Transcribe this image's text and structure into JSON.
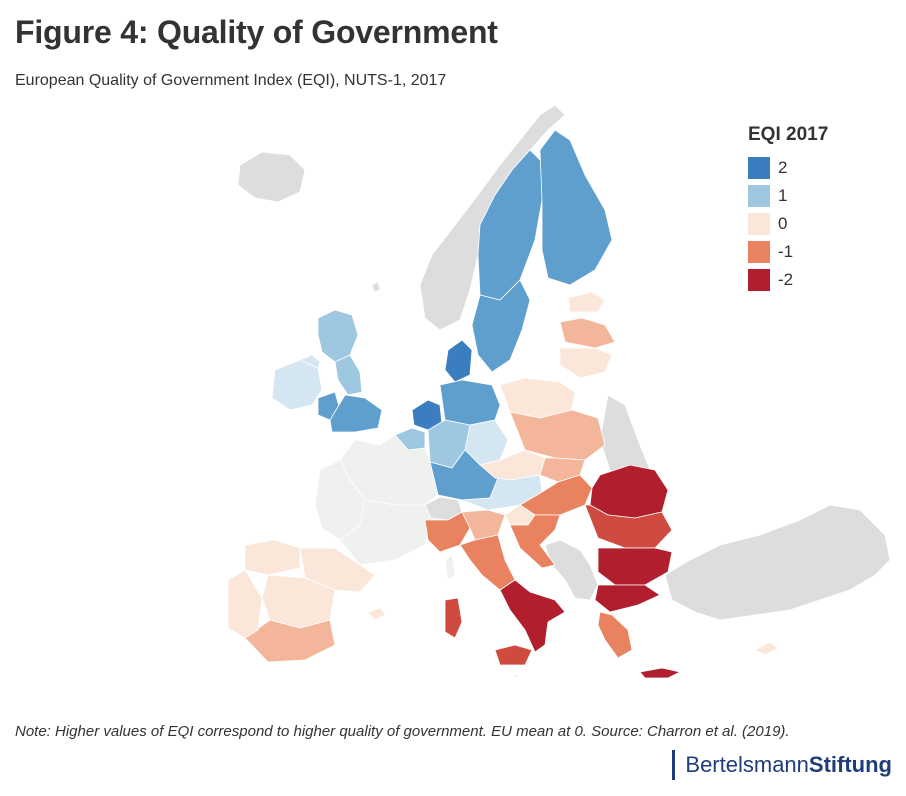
{
  "title": "Figure 4: Quality of Government",
  "subtitle": "European Quality of Government Index (EQI), NUTS-1, 2017",
  "legend": {
    "title": "EQI 2017",
    "items": [
      {
        "label": "2",
        "color": "#3a7ebf"
      },
      {
        "label": "1",
        "color": "#9ec7e2"
      },
      {
        "label": "0",
        "color": "#fbe7d9"
      },
      {
        "label": "-1",
        "color": "#e8825f"
      },
      {
        "label": "-2",
        "color": "#b11f2e"
      }
    ]
  },
  "colors": {
    "no_data": "#dddddd",
    "c2": "#3a7ebf",
    "c1_5": "#5f9fce",
    "c1": "#9ec7e2",
    "c0_5": "#d4e6f1",
    "c0_2": "#eef1ee",
    "c0": "#fbe7d9",
    "cm0_5": "#f4b69a",
    "cm1": "#e8825f",
    "cm1_5": "#cf4a3f",
    "cm2": "#b11f2e"
  },
  "note": "Note: Higher values of EQI correspond to higher quality of government. EU mean at 0. Source: Charron et al. (2019).",
  "logo": {
    "part1": "Bertelsmann",
    "part2": "Stiftung"
  }
}
